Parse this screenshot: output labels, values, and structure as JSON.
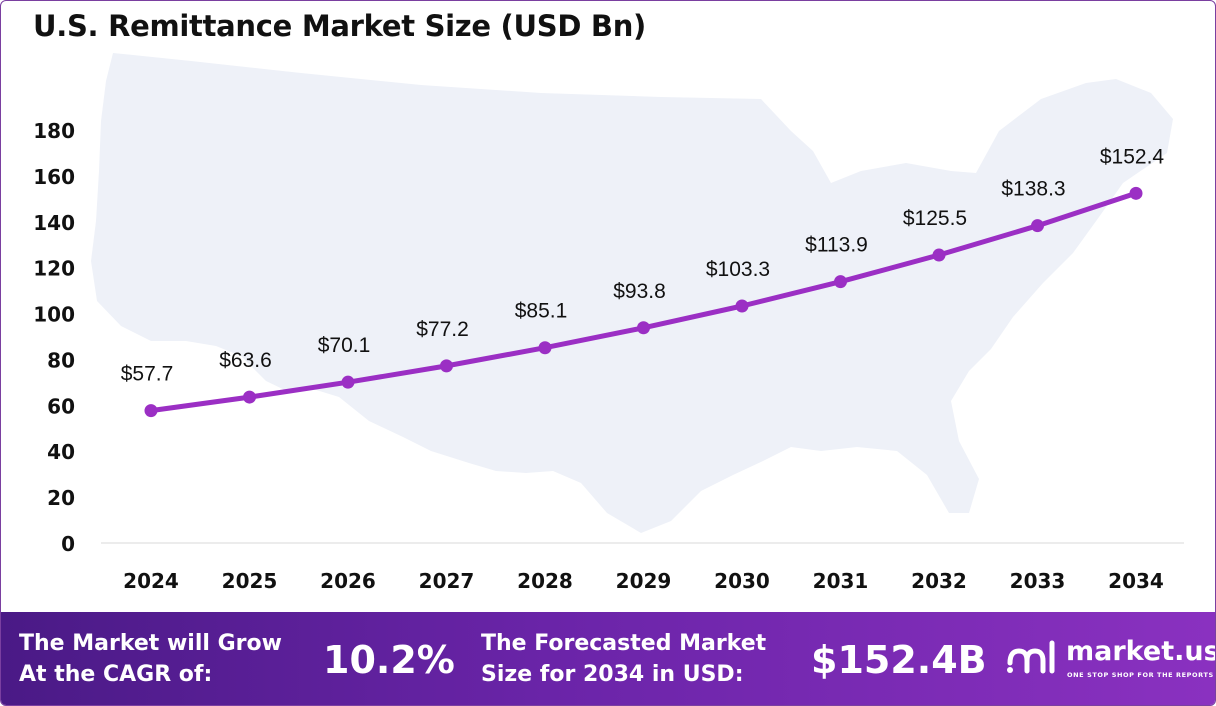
{
  "title": "U.S. Remittance Market Size (USD Bn)",
  "chart_data": {
    "type": "line",
    "title": "U.S. Remittance Market Size (USD Bn)",
    "categories": [
      "2024",
      "2025",
      "2026",
      "2027",
      "2028",
      "2029",
      "2030",
      "2031",
      "2032",
      "2033",
      "2034"
    ],
    "values": [
      57.7,
      63.6,
      70.1,
      77.2,
      85.1,
      93.8,
      103.3,
      113.9,
      125.5,
      138.3,
      152.4
    ],
    "data_labels": [
      "$57.7",
      "$63.6",
      "$70.1",
      "$77.2",
      "$85.1",
      "$93.8",
      "$103.3",
      "$113.9",
      "$125.5",
      "$138.3",
      "$152.4"
    ],
    "ylim": [
      0,
      180
    ],
    "yticks": [
      0,
      20,
      40,
      60,
      80,
      100,
      120,
      140,
      160,
      180
    ],
    "grid": false,
    "legend": "none",
    "line_color": "#9b2fc4"
  },
  "footer": {
    "cagr_label": "The Market will Grow At the CAGR of:",
    "cagr_value": "10.2%",
    "forecast_label": "The Forecasted Market Size for 2034 in USD:",
    "forecast_value": "$152.4B"
  },
  "logo": {
    "name": "market.us",
    "tagline": "ONE STOP SHOP FOR THE REPORTS",
    "icon": "market-us-logo-icon"
  },
  "colors": {
    "accent": "#9b2fc4",
    "footer_start": "#4a1a86",
    "footer_end": "#8a31c0",
    "map_fill": "#eef1f8"
  }
}
